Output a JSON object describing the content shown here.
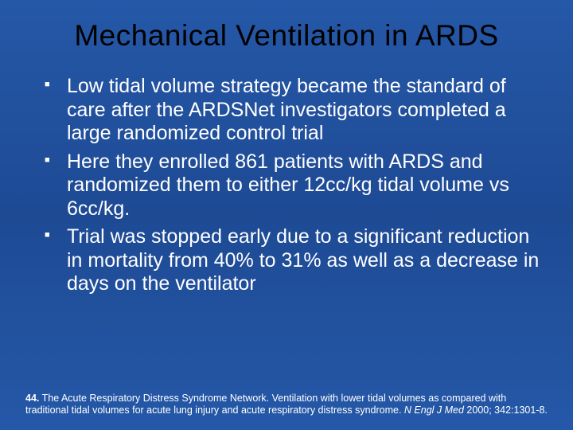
{
  "slide": {
    "title": "Mechanical Ventilation in ARDS",
    "bullets": [
      "Low tidal volume strategy became the standard of care after the ARDSNet investigators completed a large randomized control trial",
      "Here they enrolled 861 patients with ARDS and randomized them to either 12cc/kg tidal volume vs 6cc/kg.",
      "Trial was stopped early due to a significant reduction in mortality from 40% to 31% as well as a decrease in days on the ventilator"
    ],
    "citation": {
      "ref_num": "44.",
      "text_before_italic": " The Acute Respiratory Distress Syndrome Network. Ventilation with lower tidal volumes as compared with traditional tidal volumes for acute lung injury and acute respiratory distress syndrome. ",
      "italic_text": "N Engl J Med",
      "text_after_italic": " 2000; 342:1301-8."
    },
    "colors": {
      "background_top": "#2558a8",
      "background_mid": "#1e4a94",
      "title_color": "#000000",
      "body_color": "#ffffff"
    },
    "typography": {
      "title_fontsize": 37,
      "bullet_fontsize": 25,
      "citation_fontsize": 12.5
    }
  }
}
